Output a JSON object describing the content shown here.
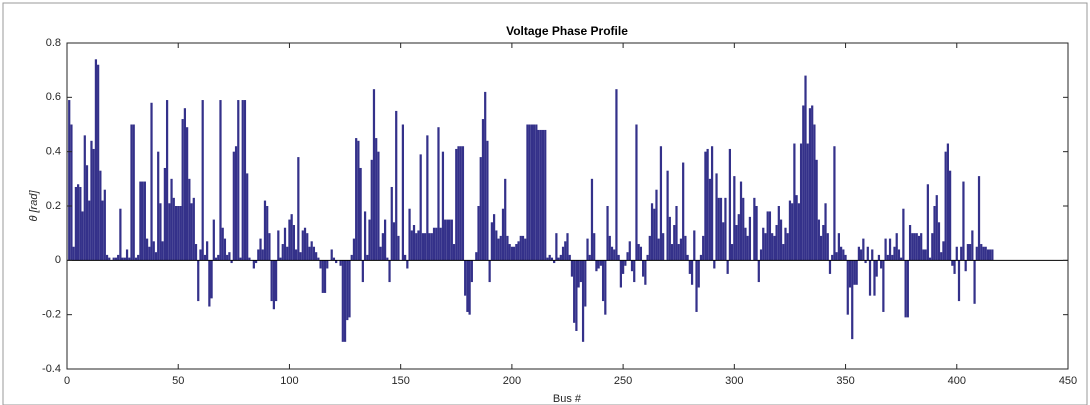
{
  "chart_data": {
    "type": "bar",
    "title": "Voltage Phase Profile",
    "xlabel": "Bus #",
    "ylabel": "θ [rad]",
    "color": "#34318a",
    "xlim": [
      0,
      450
    ],
    "xticks": [
      0,
      50,
      100,
      150,
      200,
      250,
      300,
      350,
      400,
      450
    ],
    "ylim": [
      -0.4,
      0.8
    ],
    "yticks": [
      -0.4,
      -0.2,
      0,
      0.2,
      0.4,
      0.6,
      0.8
    ],
    "x": [
      1,
      2,
      3,
      4,
      5,
      6,
      7,
      8,
      9,
      10,
      11,
      12,
      13,
      14,
      15,
      16,
      17,
      18,
      19,
      20,
      21,
      22,
      23,
      24,
      25,
      26,
      27,
      28,
      29,
      30,
      31,
      32,
      33,
      34,
      35,
      36,
      37,
      38,
      39,
      40,
      41,
      42,
      43,
      44,
      45,
      46,
      47,
      48,
      49,
      50,
      51,
      52,
      53,
      54,
      55,
      56,
      57,
      58,
      59,
      60,
      61,
      62,
      63,
      64,
      65,
      66,
      67,
      68,
      69,
      70,
      71,
      72,
      73,
      74,
      75,
      76,
      77,
      78,
      79,
      80,
      81,
      82,
      83,
      84,
      85,
      86,
      87,
      88,
      89,
      90,
      91,
      92,
      93,
      94,
      95,
      96,
      97,
      98,
      99,
      100,
      101,
      102,
      103,
      104,
      105,
      106,
      107,
      108,
      109,
      110,
      111,
      112,
      113,
      114,
      115,
      116,
      117,
      118,
      119,
      120,
      121,
      122,
      123,
      124,
      125,
      126,
      127,
      128,
      129,
      130,
      131,
      132,
      133,
      134,
      135,
      136,
      137,
      138,
      139,
      140,
      141,
      142,
      143,
      144,
      145,
      146,
      147,
      148,
      149,
      150,
      151,
      152,
      153,
      154,
      155,
      156,
      157,
      158,
      159,
      160,
      161,
      162,
      163,
      164,
      165,
      166,
      167,
      168,
      169,
      170,
      171,
      172,
      173,
      174,
      175,
      176,
      177,
      178,
      179,
      180,
      181,
      182,
      183,
      184,
      185,
      186,
      187,
      188,
      189,
      190,
      191,
      192,
      193,
      194,
      195,
      196,
      197,
      198,
      199,
      200,
      201,
      202,
      203,
      204,
      205,
      206,
      207,
      208,
      209,
      210,
      211,
      212,
      213,
      214,
      215,
      216,
      217,
      218,
      219,
      220,
      221,
      222,
      223,
      224,
      225,
      226,
      227,
      228,
      229,
      230,
      231,
      232,
      233,
      234,
      235,
      236,
      237,
      238,
      239,
      240,
      241,
      242,
      243,
      244,
      245,
      246,
      247,
      248,
      249,
      250,
      251,
      252,
      253,
      254,
      255,
      256,
      257,
      258,
      259,
      260,
      261,
      262,
      263,
      264,
      265,
      266,
      267,
      268,
      269,
      270,
      271,
      272,
      273,
      274,
      275,
      276,
      277,
      278,
      279,
      280,
      281,
      282,
      283,
      284,
      285,
      286,
      287,
      288,
      289,
      290,
      291,
      292,
      293,
      294,
      295,
      296,
      297,
      298,
      299,
      300,
      301,
      302,
      303,
      304,
      305,
      306,
      307,
      308,
      309,
      310,
      311,
      312,
      313,
      314,
      315,
      316,
      317,
      318,
      319,
      320,
      321,
      322,
      323,
      324,
      325,
      326,
      327,
      328,
      329,
      330,
      331,
      332,
      333,
      334,
      335,
      336,
      337,
      338,
      339,
      340,
      341,
      342,
      343,
      344,
      345,
      346,
      347,
      348,
      349,
      350,
      351,
      352,
      353,
      354,
      355,
      356,
      357,
      358,
      359,
      360,
      361,
      362,
      363,
      364,
      365,
      366,
      367,
      368,
      369,
      370,
      371,
      372,
      373,
      374,
      375,
      376,
      377,
      378,
      379,
      380,
      381,
      382,
      383,
      384,
      385,
      386,
      387,
      388,
      389,
      390,
      391,
      392,
      393,
      394,
      395,
      396,
      397,
      398,
      399,
      400,
      401,
      402,
      403,
      404,
      405,
      406,
      407,
      408,
      409,
      410,
      411,
      412,
      413,
      414,
      415,
      416
    ],
    "values": [
      0.59,
      0.5,
      0.05,
      0.27,
      0.28,
      0.27,
      0.18,
      0.46,
      0.35,
      0.22,
      0.44,
      0.41,
      0.74,
      0.72,
      0.33,
      0.22,
      0.26,
      0.02,
      0.01,
      0.0,
      0.01,
      0.01,
      0.02,
      0.19,
      0.01,
      0.01,
      0.04,
      0.01,
      0.5,
      0.5,
      0.01,
      0.02,
      0.29,
      0.29,
      0.29,
      0.08,
      0.05,
      0.58,
      0.07,
      0.03,
      0.4,
      0.21,
      0.07,
      0.34,
      0.59,
      0.21,
      0.3,
      0.23,
      0.2,
      0.2,
      0.2,
      0.52,
      0.56,
      0.49,
      0.3,
      0.21,
      0.23,
      0.06,
      -0.15,
      0.04,
      0.59,
      0.02,
      0.07,
      -0.17,
      -0.14,
      0.15,
      0.01,
      0.02,
      0.59,
      0.12,
      0.08,
      0.02,
      0.03,
      -0.01,
      0.4,
      0.42,
      0.59,
      0.01,
      0.59,
      0.59,
      0.32,
      0.01,
      0.0,
      -0.03,
      -0.01,
      0.04,
      0.08,
      0.04,
      0.22,
      0.2,
      0.1,
      -0.15,
      -0.18,
      -0.15,
      0.11,
      0.01,
      0.06,
      0.12,
      0.05,
      0.15,
      0.17,
      0.13,
      0.04,
      0.38,
      0.03,
      0.11,
      0.12,
      0.1,
      0.05,
      0.07,
      0.05,
      0.03,
      0.01,
      -0.03,
      -0.12,
      -0.12,
      -0.03,
      0.0,
      0.04,
      0.01,
      -0.01,
      0.0,
      -0.02,
      -0.3,
      -0.3,
      -0.22,
      -0.21,
      0.02,
      0.08,
      0.45,
      0.44,
      0.34,
      -0.08,
      0.18,
      0.02,
      0.15,
      0.37,
      0.63,
      0.45,
      0.4,
      0.05,
      0.1,
      0.15,
      0.01,
      -0.08,
      0.27,
      0.14,
      0.55,
      0.09,
      0.0,
      0.5,
      0.02,
      -0.03,
      0.19,
      0.11,
      0.13,
      0.1,
      0.11,
      0.39,
      0.1,
      0.1,
      0.46,
      0.1,
      0.1,
      0.12,
      0.12,
      0.49,
      0.12,
      0.4,
      0.15,
      0.15,
      0.15,
      0.15,
      0.06,
      0.41,
      0.42,
      0.42,
      0.42,
      -0.13,
      -0.19,
      -0.2,
      -0.08,
      0.0,
      0.03,
      0.2,
      0.38,
      0.52,
      0.62,
      0.44,
      -0.08,
      0.14,
      0.17,
      0.11,
      0.08,
      0.09,
      0.19,
      0.3,
      0.09,
      0.06,
      0.05,
      0.05,
      0.06,
      0.07,
      0.09,
      0.09,
      0.08,
      0.5,
      0.5,
      0.5,
      0.5,
      0.5,
      0.48,
      0.48,
      0.48,
      0.48,
      0.01,
      0.02,
      0.01,
      -0.01,
      0.1,
      0.01,
      0.02,
      0.05,
      0.07,
      0.1,
      0.02,
      -0.06,
      -0.23,
      -0.26,
      -0.1,
      -0.08,
      -0.3,
      -0.17,
      0.08,
      0.02,
      0.3,
      0.1,
      -0.04,
      -0.03,
      -0.02,
      -0.15,
      -0.2,
      0.2,
      0.09,
      0.05,
      0.04,
      0.63,
      0.02,
      -0.1,
      -0.05,
      -0.02,
      0.03,
      0.07,
      -0.04,
      -0.08,
      0.5,
      0.06,
      0.05,
      -0.06,
      -0.09,
      0.02,
      0.09,
      0.21,
      0.19,
      0.26,
      0.08,
      0.42,
      0.1,
      0.0,
      0.33,
      0.16,
      0.06,
      0.13,
      0.2,
      0.06,
      0.08,
      0.36,
      0.09,
      0.02,
      -0.05,
      -0.09,
      0.11,
      -0.19,
      -0.1,
      0.02,
      0.09,
      0.4,
      0.41,
      0.3,
      0.42,
      -0.03,
      0.32,
      0.23,
      0.23,
      0.14,
      0.23,
      -0.05,
      0.41,
      0.06,
      0.31,
      0.13,
      0.17,
      0.29,
      0.23,
      0.12,
      0.09,
      0.16,
      0.0,
      0.23,
      0.2,
      -0.08,
      0.04,
      0.12,
      0.1,
      0.18,
      0.18,
      0.1,
      0.09,
      0.13,
      0.2,
      0.15,
      0.06,
      0.12,
      0.1,
      0.22,
      0.21,
      0.43,
      0.24,
      0.21,
      0.43,
      0.57,
      0.68,
      0.43,
      0.56,
      0.57,
      0.5,
      0.37,
      0.15,
      0.09,
      0.13,
      0.21,
      0.1,
      -0.05,
      0.02,
      0.42,
      0.03,
      0.1,
      0.05,
      0.04,
      0.02,
      -0.2,
      -0.1,
      -0.29,
      -0.09,
      -0.09,
      0.05,
      0.04,
      0.08,
      -0.01,
      0.05,
      -0.13,
      0.04,
      -0.13,
      -0.06,
      0.02,
      -0.03,
      -0.19,
      0.08,
      0.02,
      0.08,
      0.02,
      0.05,
      0.1,
      0.04,
      0.01,
      0.19,
      -0.21,
      -0.21,
      0.13,
      0.1,
      0.1,
      0.1,
      0.09,
      0.1,
      0.04,
      0.04,
      0.28,
      0.01,
      0.1,
      0.2,
      0.24,
      0.14,
      0.03,
      0.07,
      0.4,
      0.43,
      0.33,
      -0.02,
      -0.05,
      0.05,
      -0.15,
      0.05,
      0.29,
      -0.04,
      0.06,
      0.06,
      0.11,
      -0.16,
      0.05,
      0.31,
      0.06,
      0.05,
      0.05,
      0.04,
      0.04,
      0.04
    ]
  }
}
